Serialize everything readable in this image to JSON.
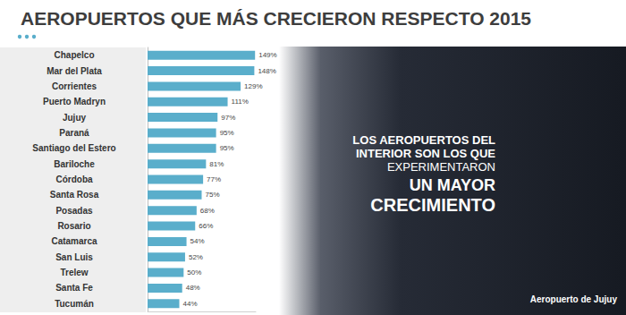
{
  "chart_data": {
    "type": "bar",
    "title": "AEROPUERTOS QUE MÁS CRECIERON RESPECTO 2015",
    "orientation": "horizontal",
    "categories": [
      "Chapelco",
      "Mar del Plata",
      "Corrientes",
      "Puerto Madryn",
      "Jujuy",
      "Paraná",
      "Santiago del Estero",
      "Bariloche",
      "Córdoba",
      "Santa Rosa",
      "Posadas",
      "Rosario",
      "Catamarca",
      "San Luis",
      "Trelew",
      "Santa Fe",
      "Tucumán"
    ],
    "values": [
      149,
      148,
      129,
      111,
      97,
      95,
      95,
      81,
      77,
      75,
      68,
      66,
      54,
      52,
      50,
      48,
      44
    ],
    "value_labels": [
      "149%",
      "148%",
      "129%",
      "111%",
      "97%",
      "95%",
      "95%",
      "81%",
      "77%",
      "75%",
      "68%",
      "66%",
      "54%",
      "52%",
      "50%",
      "48%",
      "44%"
    ],
    "color": "#5aaecb",
    "xlim": [
      0,
      150
    ],
    "data_labels": true,
    "tick_labels": "y",
    "grid": false,
    "annotations": {
      "headline": [
        "LOS AEROPUERTOS DEL",
        "INTERIOR SON LOS QUE",
        "EXPERIMENTARON",
        "UN MAYOR",
        "CRECIMIENTO"
      ],
      "photo_caption": "Aeropuerto de Jujuy"
    }
  }
}
